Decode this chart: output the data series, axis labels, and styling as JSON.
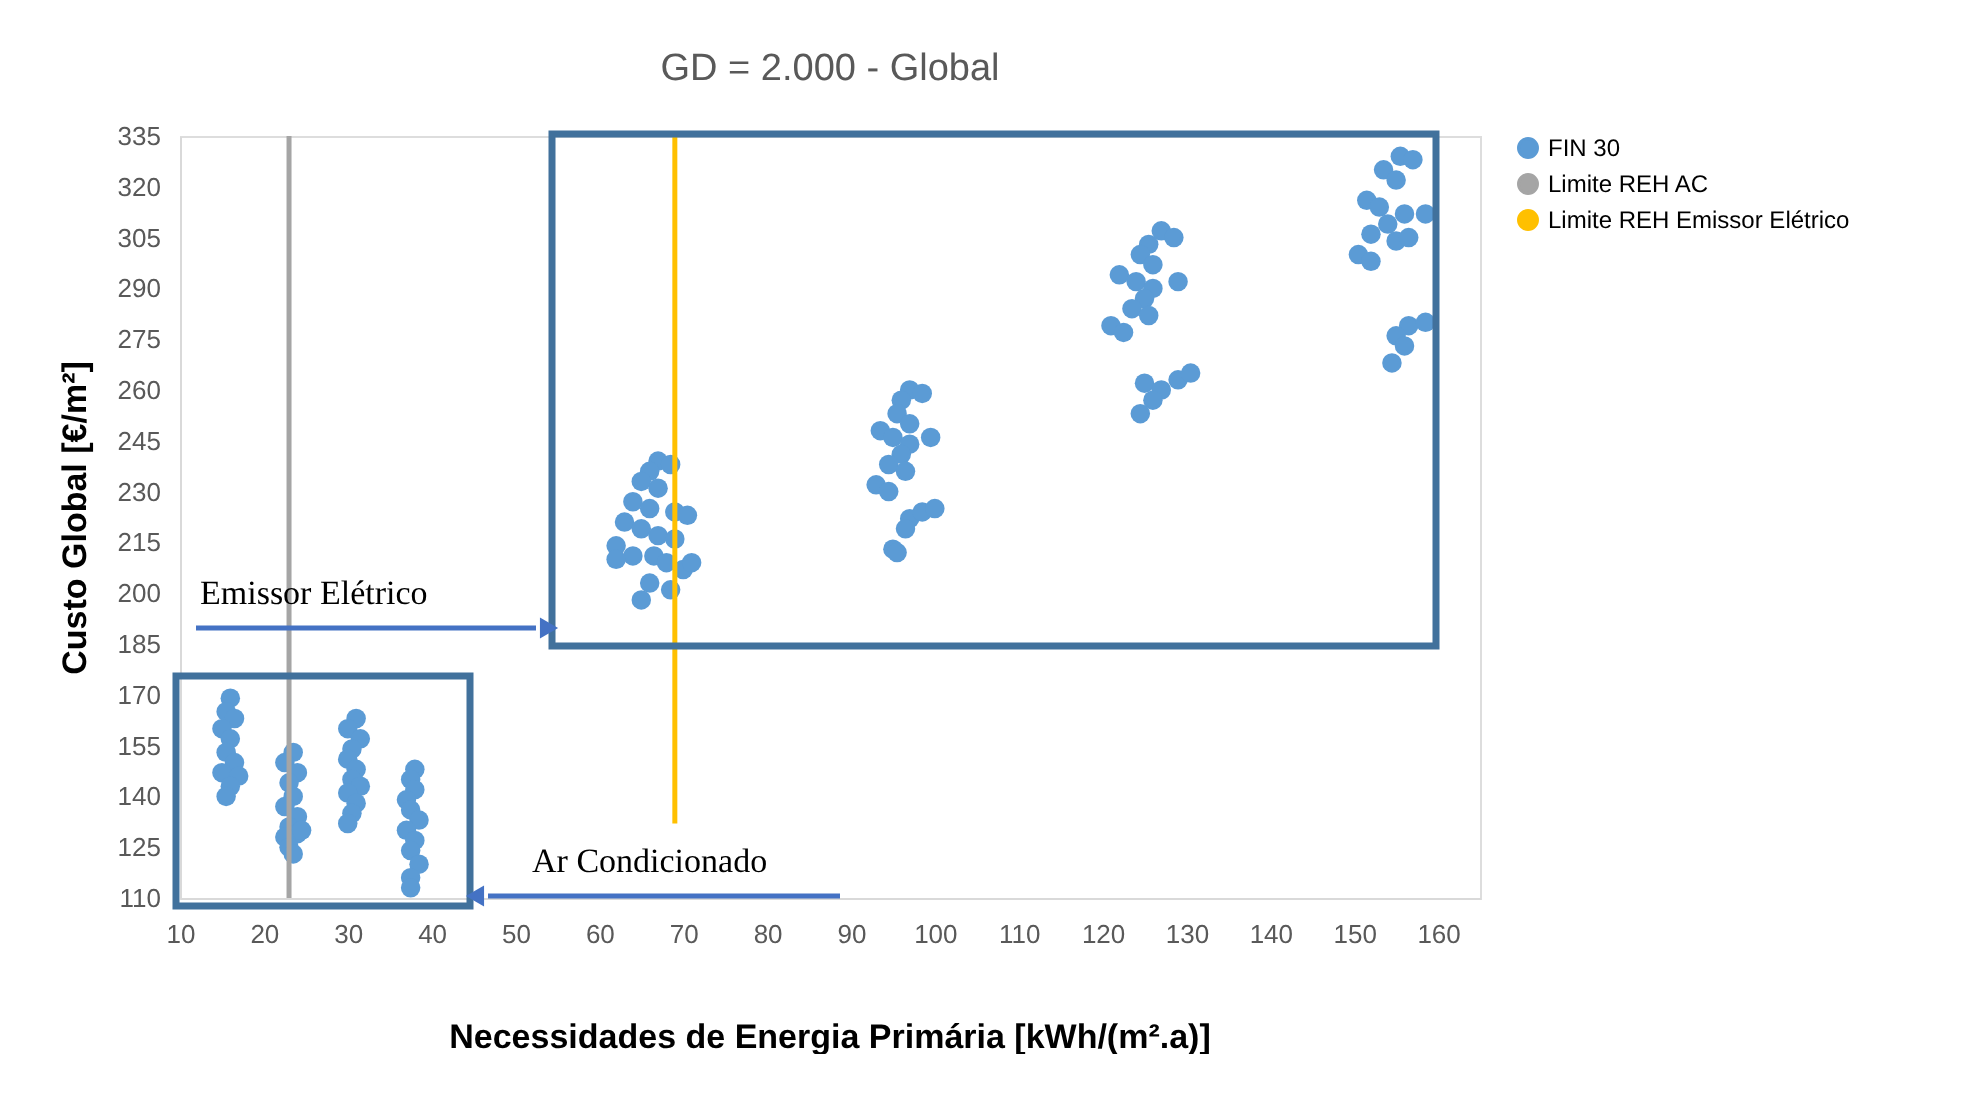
{
  "chart_data": {
    "type": "scatter",
    "title": "GD = 2.000 - Global",
    "xlabel": "Necessidades de Energia Primária [kWh/(m².a)]",
    "ylabel": "Custo Global [€/m²]",
    "xlim": [
      10,
      165
    ],
    "xticks": [
      10,
      20,
      30,
      40,
      50,
      60,
      70,
      80,
      90,
      100,
      110,
      120,
      130,
      140,
      150,
      160
    ],
    "ylim": [
      110,
      335
    ],
    "yticks": [
      110,
      125,
      140,
      155,
      170,
      185,
      200,
      215,
      230,
      245,
      260,
      275,
      290,
      305,
      320,
      335
    ],
    "grid": false,
    "legend": "right",
    "annotations": [
      "Emissor Elétrico",
      "Ar Condicionado"
    ],
    "series": [
      {
        "name": "FIN 30",
        "color": "#5b9bd5",
        "x": [
          16,
          15.5,
          16.5,
          15,
          16,
          15.5,
          16.5,
          15,
          17,
          16,
          15.5,
          23.5,
          22.5,
          24,
          23,
          23.5,
          22.5,
          24,
          23,
          24,
          22.5,
          23,
          23.5,
          24.5,
          31,
          30,
          31.5,
          30.5,
          30,
          31,
          30.5,
          31.5,
          30,
          31,
          30.5,
          30,
          38,
          37.5,
          38,
          37,
          37.5,
          38.5,
          37,
          38,
          37.5,
          38.5,
          37.5,
          37.5,
          67,
          68.5,
          66,
          65,
          67,
          64,
          66,
          69,
          70.5,
          63,
          65,
          67,
          62,
          64,
          66.5,
          68,
          70,
          71,
          66,
          68.5,
          65,
          62,
          69,
          97,
          98.5,
          96,
          95.5,
          97,
          93.5,
          95,
          97,
          99.5,
          96,
          94.5,
          96.5,
          93,
          94.5,
          97,
          98.5,
          100,
          96.5,
          95,
          95.5,
          127,
          128.5,
          125.5,
          124.5,
          126,
          122,
          124,
          126,
          129,
          125,
          123.5,
          125.5,
          121,
          122.5,
          125,
          127,
          129,
          130.5,
          126,
          124.5,
          155.5,
          157,
          153.5,
          155,
          151.5,
          153,
          156,
          158.5,
          154,
          152,
          155,
          156.5,
          150.5,
          152,
          156.5,
          158.5,
          155,
          156,
          154.5
        ],
        "values": [
          169,
          165,
          163,
          160,
          157,
          153,
          150,
          147,
          146,
          143,
          140,
          153,
          150,
          147,
          144,
          140,
          137,
          134,
          131,
          129,
          128,
          125,
          123,
          130,
          163,
          160,
          157,
          154,
          151,
          148,
          145,
          143,
          141,
          138,
          135,
          132,
          148,
          145,
          142,
          139,
          136,
          133,
          130,
          127,
          124,
          120,
          116,
          113,
          239,
          238,
          236,
          233,
          231,
          227,
          225,
          224,
          223,
          221,
          219,
          217,
          214,
          211,
          211,
          209,
          207,
          209,
          203,
          201,
          198,
          210,
          216,
          260,
          259,
          257,
          253,
          250,
          248,
          246,
          244,
          246,
          241,
          238,
          236,
          232,
          230,
          222,
          224,
          225,
          219,
          213,
          212,
          307,
          305,
          303,
          300,
          297,
          294,
          292,
          290,
          292,
          287,
          284,
          282,
          279,
          277,
          262,
          260,
          263,
          265,
          257,
          253,
          329,
          328,
          325,
          322,
          316,
          314,
          312,
          312,
          309,
          306,
          304,
          305,
          300,
          298,
          279,
          280,
          276,
          273,
          268
        ]
      },
      {
        "name": "Limite REH AC",
        "type": "line",
        "color": "#a5a5a5",
        "x": [
          23,
          23
        ],
        "values": [
          110,
          335
        ]
      },
      {
        "name": "Limite REH Emissor Elétrico",
        "type": "line",
        "color": "#ffc000",
        "x": [
          69,
          69
        ],
        "values": [
          132,
          335
        ]
      }
    ]
  }
}
